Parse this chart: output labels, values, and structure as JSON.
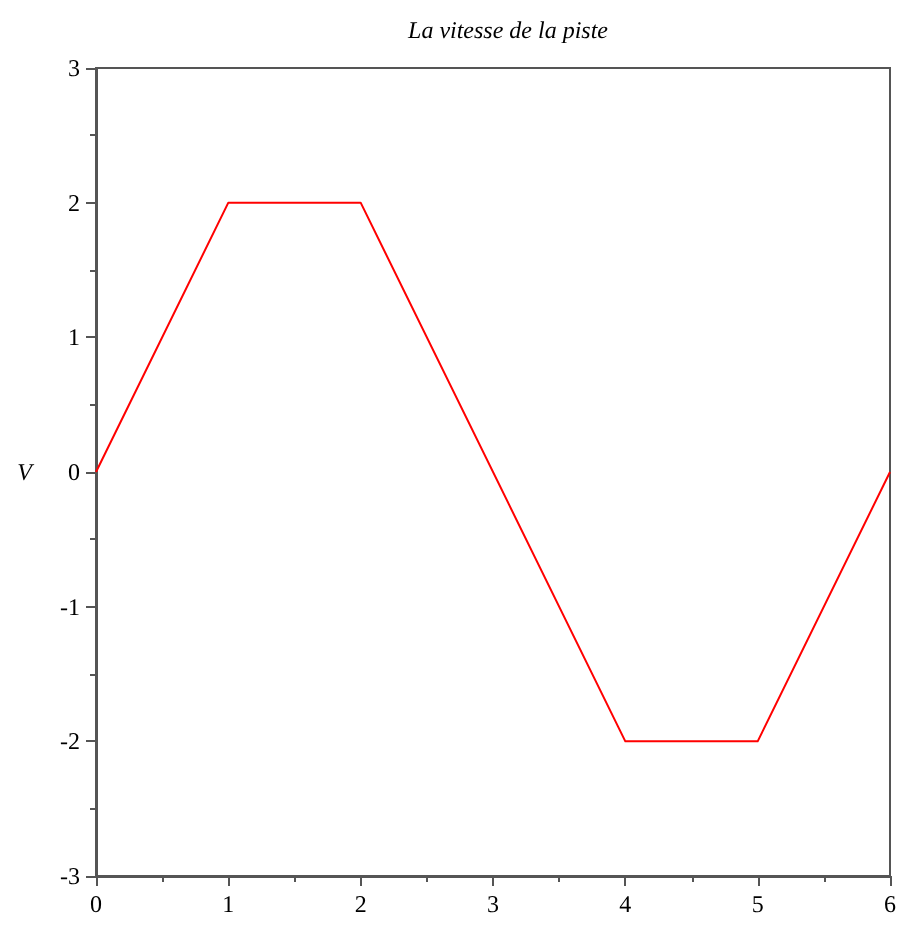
{
  "chart_data": {
    "type": "line",
    "title": "La vitesse de la piste",
    "ylabel": "V",
    "x": [
      0,
      1,
      2,
      4,
      5,
      6
    ],
    "series": [
      {
        "color": "#ff0000",
        "values": [
          0,
          2,
          2,
          -2,
          -2,
          0
        ]
      }
    ],
    "xlim": [
      0,
      6
    ],
    "xticks": [
      0,
      1,
      2,
      3,
      4,
      5,
      6
    ],
    "ylim": [
      -3,
      3
    ],
    "yticks": [
      -3,
      -2,
      -1,
      0,
      1,
      2,
      3
    ],
    "grid": false,
    "marker": "none",
    "line_style": "solid"
  }
}
